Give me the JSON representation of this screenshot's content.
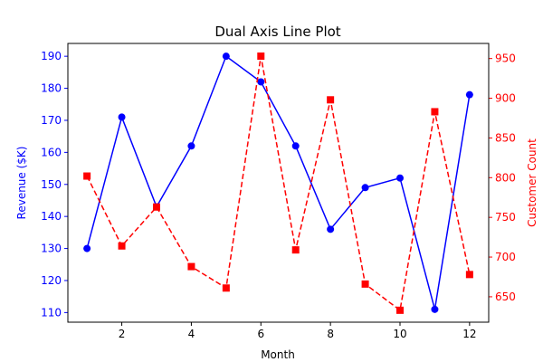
{
  "chart_data": {
    "type": "line",
    "title": "Dual Axis Line Plot",
    "xlabel": "Month",
    "x": [
      1,
      2,
      3,
      4,
      5,
      6,
      7,
      8,
      9,
      10,
      11,
      12
    ],
    "xlim": [
      0.45,
      12.55
    ],
    "xticks": [
      2,
      4,
      6,
      8,
      10,
      12
    ],
    "grid": false,
    "legend": "none",
    "y_left": {
      "label": "Revenue ($K)",
      "color": "#0000ff",
      "lim": [
        107,
        194
      ],
      "ticks": [
        110,
        120,
        130,
        140,
        150,
        160,
        170,
        180,
        190
      ]
    },
    "y_right": {
      "label": "Customer Count",
      "color": "#ff0000",
      "lim": [
        618,
        969
      ],
      "ticks": [
        650,
        700,
        750,
        800,
        850,
        900,
        950
      ]
    },
    "series": [
      {
        "axis": "left",
        "color": "#0000ff",
        "line_style": "solid",
        "marker": "circle",
        "values": [
          130,
          171,
          143,
          162,
          190,
          182,
          162,
          136,
          149,
          152,
          111,
          178
        ]
      },
      {
        "axis": "right",
        "color": "#ff0000",
        "line_style": "dashed",
        "marker": "square",
        "values": [
          802,
          714,
          763,
          688,
          661,
          953,
          709,
          898,
          666,
          633,
          883,
          678
        ]
      }
    ]
  }
}
